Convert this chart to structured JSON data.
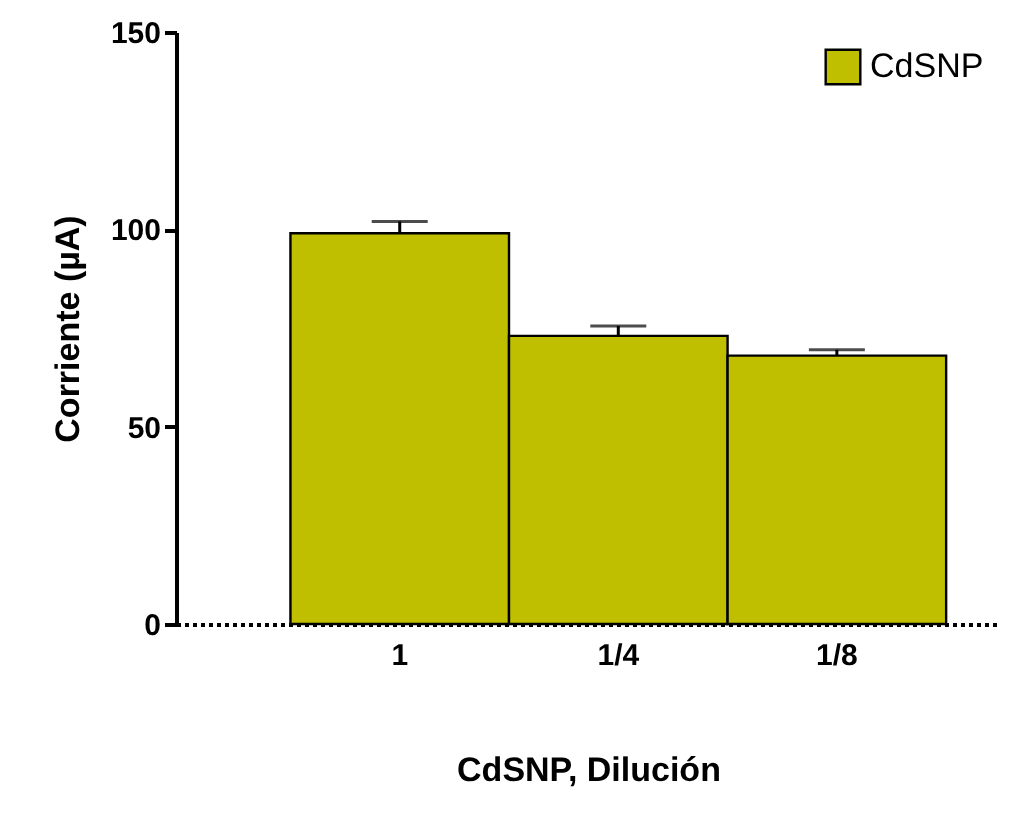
{
  "chart_data": {
    "type": "bar",
    "xlabel": "CdSNP, Dilución",
    "ylabel": "Corriente (µA)",
    "categories": [
      "1",
      "1/4",
      "1/8"
    ],
    "series": [
      {
        "name": "CdSNP",
        "color": "#bfbf00",
        "values": [
          99,
          73,
          68
        ],
        "errors": [
          [
            99,
            102
          ],
          [
            73,
            75.5
          ],
          [
            68,
            69.5
          ]
        ]
      }
    ],
    "ylim": [
      0,
      150
    ],
    "yticks": [
      0,
      50,
      100,
      150
    ],
    "grid": false,
    "legend": "top right"
  }
}
